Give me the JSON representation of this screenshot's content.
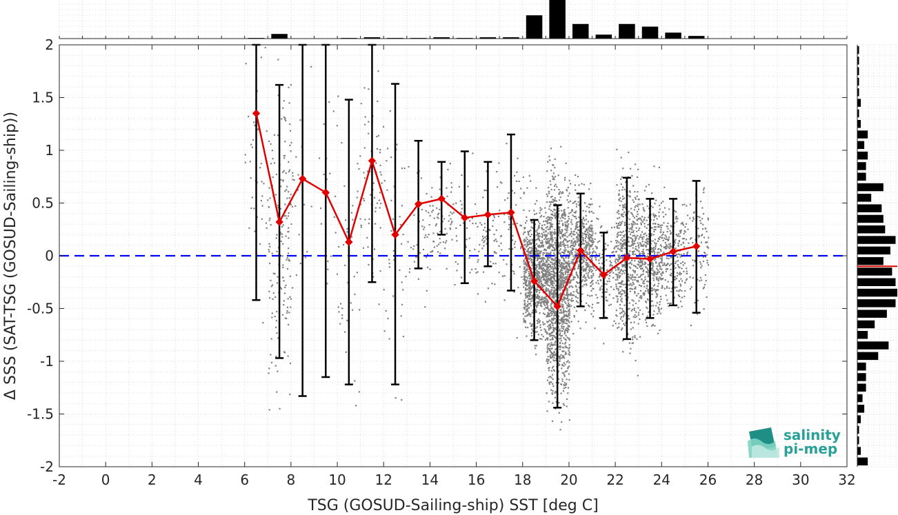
{
  "chart_data": {
    "type": "scatter",
    "xlabel": "TSG (GOSUD-Sailing-ship) SST [deg C]",
    "ylabel": "Δ SSS (SAT-TSG (GOSUD-Sailing-ship))",
    "xlim": [
      -2,
      32
    ],
    "ylim": [
      -2,
      2
    ],
    "xticks": [
      "-2",
      "0",
      "2",
      "4",
      "6",
      "8",
      "10",
      "12",
      "14",
      "16",
      "18",
      "20",
      "22",
      "24",
      "26",
      "28",
      "30",
      "32"
    ],
    "yticks": [
      "2",
      "1.5",
      "1",
      "0.5",
      "0",
      "-0.5",
      "-1",
      "-1.5",
      "-2"
    ],
    "grid": true,
    "zero_line": {
      "y": 0,
      "color": "#0000ff",
      "style": "dashed"
    },
    "binned_mean": {
      "color": "#e00000",
      "x": [
        6.5,
        7.5,
        8.5,
        9.5,
        10.5,
        11.5,
        12.5,
        13.5,
        14.5,
        15.5,
        16.5,
        17.5,
        18.5,
        19.5,
        20.5,
        21.5,
        22.5,
        23.5,
        24.5,
        25.5
      ],
      "y": [
        1.35,
        0.32,
        0.73,
        0.6,
        0.13,
        0.9,
        0.2,
        0.49,
        0.54,
        0.36,
        0.39,
        0.41,
        -0.24,
        -0.48,
        0.05,
        -0.18,
        -0.02,
        -0.03,
        0.04,
        0.09
      ],
      "err_low": [
        -0.42,
        -0.97,
        -1.33,
        -1.15,
        -1.22,
        -0.25,
        -1.22,
        -0.12,
        0.2,
        -0.26,
        -0.1,
        -0.33,
        -0.8,
        -1.44,
        -0.48,
        -0.59,
        -0.79,
        -0.59,
        -0.47,
        -0.54
      ],
      "err_high": [
        2.0,
        1.62,
        2.0,
        2.0,
        1.48,
        2.0,
        1.63,
        1.09,
        0.89,
        0.99,
        0.89,
        1.15,
        0.34,
        0.48,
        0.59,
        0.22,
        0.74,
        0.54,
        0.54,
        0.71
      ]
    },
    "scatter_color": "#808080",
    "top_histogram": {
      "bin_centers": [
        6.5,
        7.5,
        8.5,
        9.5,
        10.5,
        11.5,
        12.5,
        13.5,
        14.5,
        15.5,
        16.5,
        17.5,
        18.5,
        19.5,
        20.5,
        21.5,
        22.5,
        23.5,
        24.5,
        25.5
      ],
      "counts": [
        1,
        7,
        0,
        0,
        1,
        2,
        1,
        1,
        2,
        1,
        2,
        2,
        35,
        58,
        22,
        6,
        22,
        18,
        9,
        4
      ]
    },
    "right_histogram": {
      "bin_centers": [
        1.95,
        1.85,
        1.75,
        1.65,
        1.55,
        1.45,
        1.35,
        1.25,
        1.15,
        1.05,
        0.95,
        0.85,
        0.75,
        0.65,
        0.55,
        0.45,
        0.35,
        0.25,
        0.15,
        0.05,
        -0.05,
        -0.15,
        -0.25,
        -0.35,
        -0.45,
        -0.55,
        -0.65,
        -0.75,
        -0.85,
        -0.95,
        -1.05,
        -1.15,
        -1.25,
        -1.35,
        -1.45,
        -1.55,
        -1.65,
        -1.75,
        -1.85,
        -1.95
      ],
      "counts": [
        1,
        1,
        1,
        1,
        1,
        2,
        1,
        2,
        6,
        4,
        6,
        5,
        5,
        15,
        8,
        14,
        15,
        16,
        22,
        19,
        15,
        20,
        22,
        23,
        22,
        17,
        10,
        6,
        18,
        12,
        5,
        5,
        5,
        3,
        4,
        2,
        1,
        1,
        2,
        6
      ],
      "mean_line": {
        "y": -0.1,
        "color": "#e00000"
      }
    },
    "logo": {
      "line1": "salinity",
      "line2": "pi-mep",
      "color": "#2aa198"
    }
  }
}
